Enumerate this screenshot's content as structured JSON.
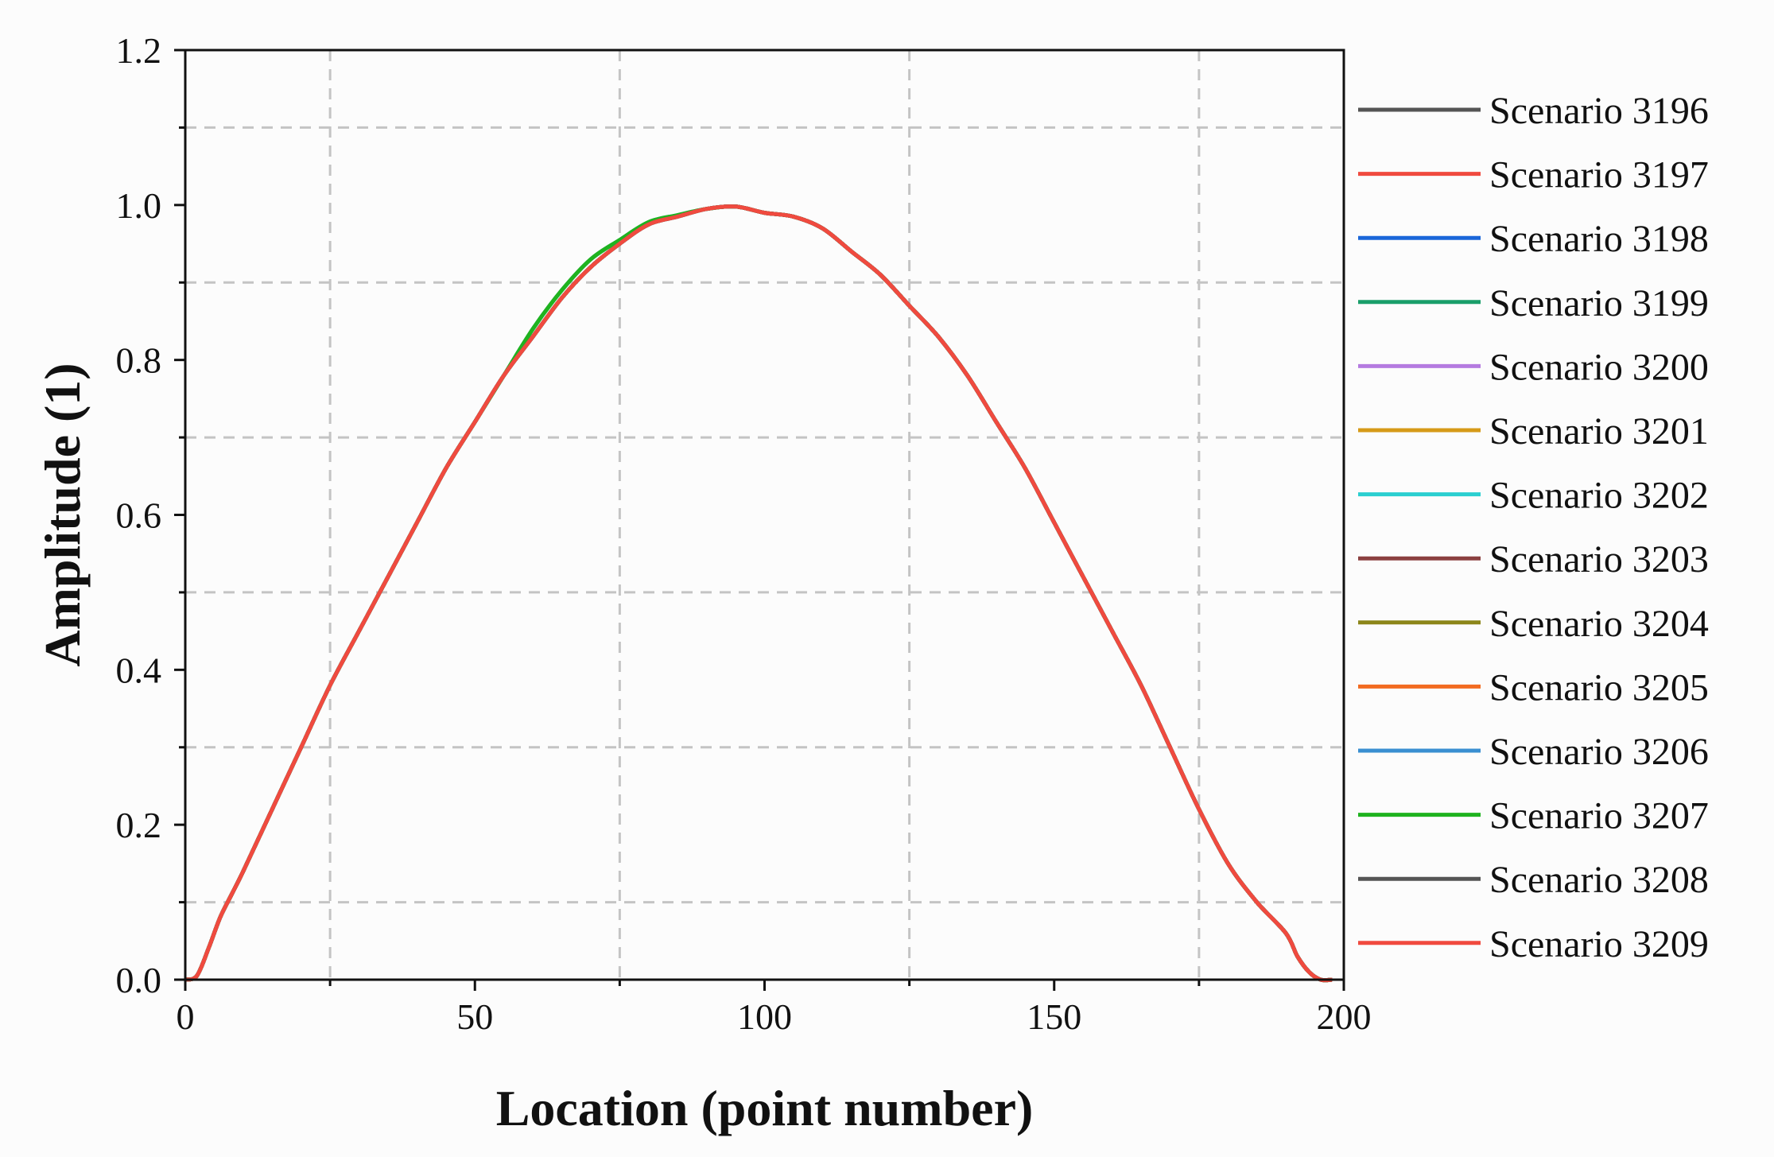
{
  "chart_data": {
    "type": "line",
    "title": "",
    "xlabel": "Location (point number)",
    "ylabel": "Amplitude (1)",
    "xlim": [
      0,
      200
    ],
    "ylim": [
      0.0,
      1.2
    ],
    "x_ticks": [
      0,
      50,
      100,
      150,
      200
    ],
    "x_tick_labels": [
      "0",
      "50",
      "100",
      "150",
      "200"
    ],
    "y_ticks": [
      0.0,
      0.2,
      0.4,
      0.6,
      0.8,
      1.0,
      1.2
    ],
    "y_tick_labels": [
      "0.0",
      "0.2",
      "0.4",
      "0.6",
      "0.8",
      "1.0",
      "1.2"
    ],
    "x_grid": [
      25,
      75,
      125,
      175
    ],
    "y_grid": [
      0.1,
      0.3,
      0.5,
      0.7,
      0.9,
      1.1
    ],
    "grid": "dashed",
    "legend_position": "right",
    "x": [
      0,
      2,
      4,
      6,
      8,
      10,
      15,
      20,
      25,
      30,
      35,
      40,
      45,
      50,
      55,
      60,
      65,
      70,
      75,
      80,
      85,
      90,
      95,
      100,
      105,
      110,
      115,
      120,
      125,
      130,
      135,
      140,
      145,
      150,
      155,
      160,
      165,
      170,
      175,
      180,
      185,
      190,
      192,
      194,
      196,
      198
    ],
    "series": [
      {
        "name": "Scenario 3196",
        "color": "#555555",
        "values": [
          0,
          0.005,
          0.04,
          0.08,
          0.11,
          0.14,
          0.22,
          0.3,
          0.38,
          0.45,
          0.52,
          0.59,
          0.66,
          0.72,
          0.78,
          0.83,
          0.88,
          0.92,
          0.95,
          0.975,
          0.985,
          0.995,
          0.998,
          0.99,
          0.985,
          0.97,
          0.94,
          0.91,
          0.87,
          0.83,
          0.78,
          0.72,
          0.66,
          0.59,
          0.52,
          0.45,
          0.38,
          0.3,
          0.22,
          0.15,
          0.1,
          0.06,
          0.03,
          0.01,
          0.0,
          0.0
        ]
      },
      {
        "name": "Scenario 3197",
        "color": "#f04a3f",
        "values": [
          0,
          0.005,
          0.04,
          0.08,
          0.11,
          0.14,
          0.22,
          0.3,
          0.38,
          0.45,
          0.52,
          0.59,
          0.66,
          0.72,
          0.78,
          0.83,
          0.88,
          0.92,
          0.95,
          0.975,
          0.985,
          0.995,
          0.998,
          0.99,
          0.985,
          0.97,
          0.94,
          0.91,
          0.87,
          0.83,
          0.78,
          0.72,
          0.66,
          0.59,
          0.52,
          0.45,
          0.38,
          0.3,
          0.22,
          0.15,
          0.1,
          0.06,
          0.03,
          0.01,
          0.0,
          0.0
        ]
      },
      {
        "name": "Scenario 3198",
        "color": "#1a66d9",
        "values": [
          0,
          0.005,
          0.04,
          0.08,
          0.11,
          0.14,
          0.22,
          0.3,
          0.38,
          0.45,
          0.52,
          0.59,
          0.66,
          0.72,
          0.78,
          0.83,
          0.88,
          0.92,
          0.95,
          0.975,
          0.985,
          0.995,
          0.998,
          0.99,
          0.985,
          0.97,
          0.94,
          0.91,
          0.87,
          0.83,
          0.78,
          0.72,
          0.66,
          0.59,
          0.52,
          0.45,
          0.38,
          0.3,
          0.22,
          0.15,
          0.1,
          0.06,
          0.03,
          0.01,
          0.0,
          0.0
        ]
      },
      {
        "name": "Scenario 3199",
        "color": "#1a9e6a",
        "values": [
          0,
          0.005,
          0.04,
          0.08,
          0.11,
          0.14,
          0.22,
          0.3,
          0.38,
          0.45,
          0.52,
          0.59,
          0.66,
          0.72,
          0.78,
          0.84,
          0.89,
          0.93,
          0.955,
          0.978,
          0.987,
          0.995,
          0.998,
          0.99,
          0.985,
          0.97,
          0.94,
          0.91,
          0.87,
          0.83,
          0.78,
          0.72,
          0.66,
          0.59,
          0.52,
          0.45,
          0.38,
          0.3,
          0.22,
          0.15,
          0.1,
          0.06,
          0.03,
          0.01,
          0.0,
          0.0
        ]
      },
      {
        "name": "Scenario 3200",
        "color": "#b57be0",
        "values": [
          0,
          0.005,
          0.04,
          0.08,
          0.11,
          0.14,
          0.22,
          0.3,
          0.38,
          0.45,
          0.52,
          0.59,
          0.66,
          0.72,
          0.78,
          0.83,
          0.88,
          0.92,
          0.95,
          0.975,
          0.985,
          0.995,
          0.998,
          0.99,
          0.985,
          0.97,
          0.94,
          0.91,
          0.87,
          0.83,
          0.78,
          0.72,
          0.66,
          0.59,
          0.52,
          0.45,
          0.38,
          0.3,
          0.22,
          0.15,
          0.1,
          0.06,
          0.03,
          0.01,
          0.0,
          0.0
        ]
      },
      {
        "name": "Scenario 3201",
        "color": "#d69a18",
        "values": [
          0,
          0.005,
          0.04,
          0.08,
          0.11,
          0.14,
          0.22,
          0.3,
          0.38,
          0.45,
          0.52,
          0.59,
          0.66,
          0.72,
          0.78,
          0.83,
          0.88,
          0.92,
          0.95,
          0.975,
          0.985,
          0.995,
          0.998,
          0.99,
          0.985,
          0.97,
          0.94,
          0.91,
          0.87,
          0.83,
          0.78,
          0.72,
          0.66,
          0.59,
          0.52,
          0.45,
          0.38,
          0.3,
          0.22,
          0.15,
          0.1,
          0.06,
          0.03,
          0.01,
          0.0,
          0.0
        ]
      },
      {
        "name": "Scenario 3202",
        "color": "#2bcfd0",
        "values": [
          0,
          0.005,
          0.04,
          0.08,
          0.11,
          0.14,
          0.22,
          0.3,
          0.38,
          0.45,
          0.52,
          0.59,
          0.66,
          0.72,
          0.78,
          0.83,
          0.88,
          0.92,
          0.95,
          0.975,
          0.985,
          0.995,
          0.998,
          0.99,
          0.985,
          0.97,
          0.94,
          0.91,
          0.87,
          0.83,
          0.78,
          0.72,
          0.66,
          0.59,
          0.52,
          0.45,
          0.38,
          0.3,
          0.22,
          0.15,
          0.1,
          0.06,
          0.03,
          0.01,
          0.0,
          0.0
        ]
      },
      {
        "name": "Scenario 3203",
        "color": "#8b4040",
        "values": [
          0,
          0.005,
          0.04,
          0.08,
          0.11,
          0.14,
          0.22,
          0.3,
          0.38,
          0.45,
          0.52,
          0.59,
          0.66,
          0.72,
          0.78,
          0.83,
          0.88,
          0.92,
          0.95,
          0.975,
          0.985,
          0.995,
          0.998,
          0.99,
          0.985,
          0.97,
          0.94,
          0.91,
          0.87,
          0.83,
          0.78,
          0.72,
          0.66,
          0.59,
          0.52,
          0.45,
          0.38,
          0.3,
          0.22,
          0.15,
          0.1,
          0.06,
          0.03,
          0.01,
          0.0,
          0.0
        ]
      },
      {
        "name": "Scenario 3204",
        "color": "#8c861a",
        "values": [
          0,
          0.005,
          0.04,
          0.08,
          0.11,
          0.14,
          0.22,
          0.3,
          0.38,
          0.45,
          0.52,
          0.59,
          0.66,
          0.72,
          0.78,
          0.83,
          0.88,
          0.92,
          0.95,
          0.975,
          0.985,
          0.995,
          0.998,
          0.99,
          0.985,
          0.97,
          0.94,
          0.91,
          0.87,
          0.83,
          0.78,
          0.72,
          0.66,
          0.59,
          0.52,
          0.45,
          0.38,
          0.3,
          0.22,
          0.15,
          0.1,
          0.06,
          0.03,
          0.01,
          0.0,
          0.0
        ]
      },
      {
        "name": "Scenario 3205",
        "color": "#f26b21",
        "values": [
          0,
          0.005,
          0.04,
          0.08,
          0.11,
          0.14,
          0.22,
          0.3,
          0.38,
          0.45,
          0.52,
          0.59,
          0.66,
          0.72,
          0.78,
          0.83,
          0.88,
          0.92,
          0.95,
          0.975,
          0.985,
          0.995,
          0.998,
          0.99,
          0.985,
          0.97,
          0.94,
          0.91,
          0.87,
          0.83,
          0.78,
          0.72,
          0.66,
          0.59,
          0.52,
          0.45,
          0.38,
          0.3,
          0.22,
          0.15,
          0.1,
          0.06,
          0.03,
          0.01,
          0.0,
          0.0
        ]
      },
      {
        "name": "Scenario 3206",
        "color": "#3a8fd1",
        "values": [
          0,
          0.005,
          0.04,
          0.08,
          0.11,
          0.14,
          0.22,
          0.3,
          0.38,
          0.45,
          0.52,
          0.59,
          0.66,
          0.72,
          0.78,
          0.83,
          0.88,
          0.92,
          0.95,
          0.975,
          0.985,
          0.995,
          0.998,
          0.99,
          0.985,
          0.97,
          0.94,
          0.91,
          0.87,
          0.83,
          0.78,
          0.72,
          0.66,
          0.59,
          0.52,
          0.45,
          0.38,
          0.3,
          0.22,
          0.15,
          0.1,
          0.06,
          0.03,
          0.01,
          0.0,
          0.0
        ]
      },
      {
        "name": "Scenario 3207",
        "color": "#1fb31f",
        "values": [
          0,
          0.005,
          0.04,
          0.08,
          0.11,
          0.14,
          0.22,
          0.3,
          0.38,
          0.45,
          0.52,
          0.59,
          0.66,
          0.72,
          0.78,
          0.84,
          0.89,
          0.93,
          0.955,
          0.978,
          0.987,
          0.995,
          0.998,
          0.99,
          0.985,
          0.97,
          0.94,
          0.91,
          0.87,
          0.83,
          0.78,
          0.72,
          0.66,
          0.59,
          0.52,
          0.45,
          0.38,
          0.3,
          0.22,
          0.15,
          0.1,
          0.06,
          0.03,
          0.01,
          0.0,
          0.0
        ]
      },
      {
        "name": "Scenario 3208",
        "color": "#555555",
        "values": [
          0,
          0.005,
          0.04,
          0.08,
          0.11,
          0.14,
          0.22,
          0.3,
          0.38,
          0.45,
          0.52,
          0.59,
          0.66,
          0.72,
          0.78,
          0.83,
          0.88,
          0.92,
          0.95,
          0.975,
          0.985,
          0.995,
          0.998,
          0.99,
          0.985,
          0.97,
          0.94,
          0.91,
          0.87,
          0.83,
          0.78,
          0.72,
          0.66,
          0.59,
          0.52,
          0.45,
          0.38,
          0.3,
          0.22,
          0.15,
          0.1,
          0.06,
          0.03,
          0.01,
          0.0,
          0.0
        ]
      },
      {
        "name": "Scenario 3209",
        "color": "#f04a3f",
        "values": [
          0,
          0.005,
          0.04,
          0.08,
          0.11,
          0.14,
          0.22,
          0.3,
          0.38,
          0.45,
          0.52,
          0.59,
          0.66,
          0.72,
          0.78,
          0.83,
          0.88,
          0.92,
          0.95,
          0.975,
          0.985,
          0.995,
          0.998,
          0.99,
          0.985,
          0.97,
          0.94,
          0.91,
          0.87,
          0.83,
          0.78,
          0.72,
          0.66,
          0.59,
          0.52,
          0.45,
          0.38,
          0.3,
          0.22,
          0.15,
          0.1,
          0.06,
          0.03,
          0.01,
          0.0,
          0.0
        ]
      }
    ]
  }
}
